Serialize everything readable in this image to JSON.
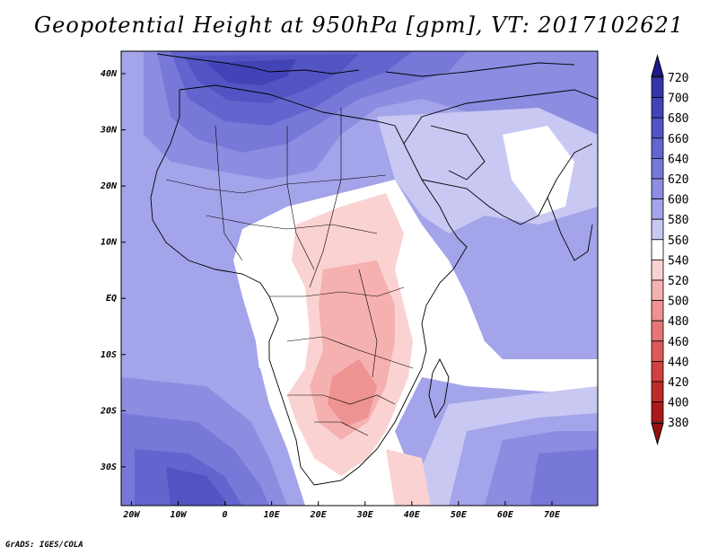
{
  "title": "Geopotential Height at 950hPa [gpm], VT: 2017102621",
  "footer": "GrADS: IGES/COLA",
  "lat_ticks": [
    {
      "label": "40N",
      "lat": 40
    },
    {
      "label": "30N",
      "lat": 30
    },
    {
      "label": "20N",
      "lat": 20
    },
    {
      "label": "10N",
      "lat": 10
    },
    {
      "label": "EQ",
      "lat": 0
    },
    {
      "label": "10S",
      "lat": -10
    },
    {
      "label": "20S",
      "lat": -20
    },
    {
      "label": "30S",
      "lat": -30
    }
  ],
  "lon_ticks": [
    {
      "label": "20W",
      "lon": -20
    },
    {
      "label": "10W",
      "lon": -10
    },
    {
      "label": "0",
      "lon": 0
    },
    {
      "label": "10E",
      "lon": 10
    },
    {
      "label": "20E",
      "lon": 20
    },
    {
      "label": "30E",
      "lon": 30
    },
    {
      "label": "40E",
      "lon": 40
    },
    {
      "label": "50E",
      "lon": 50
    },
    {
      "label": "60E",
      "lon": 60
    },
    {
      "label": "70E",
      "lon": 70
    }
  ],
  "colorbar": {
    "levels": [
      {
        "label": "720",
        "color": "#2a2a9e"
      },
      {
        "label": "700",
        "color": "#3535aa"
      },
      {
        "label": "680",
        "color": "#4343b8"
      },
      {
        "label": "660",
        "color": "#5353c4"
      },
      {
        "label": "640",
        "color": "#6464cf"
      },
      {
        "label": "620",
        "color": "#7878d8"
      },
      {
        "label": "600",
        "color": "#8c8ce1"
      },
      {
        "label": "580",
        "color": "#a4a4ea"
      },
      {
        "label": "560",
        "color": "#c8c8f3"
      },
      {
        "label": "540",
        "color": "#ffffff"
      },
      {
        "label": "520",
        "color": "#fbd2d2"
      },
      {
        "label": "500",
        "color": "#f5b0b0"
      },
      {
        "label": "480",
        "color": "#ee9292"
      },
      {
        "label": "460",
        "color": "#e67676"
      },
      {
        "label": "440",
        "color": "#dc5a5a"
      },
      {
        "label": "420",
        "color": "#d04040"
      },
      {
        "label": "400",
        "color": "#bf2b2b"
      },
      {
        "label": "380",
        "color": "#aa1a1a"
      }
    ],
    "top_arrow_color": "#1c1c8c",
    "bottom_arrow_color": "#991010"
  }
}
